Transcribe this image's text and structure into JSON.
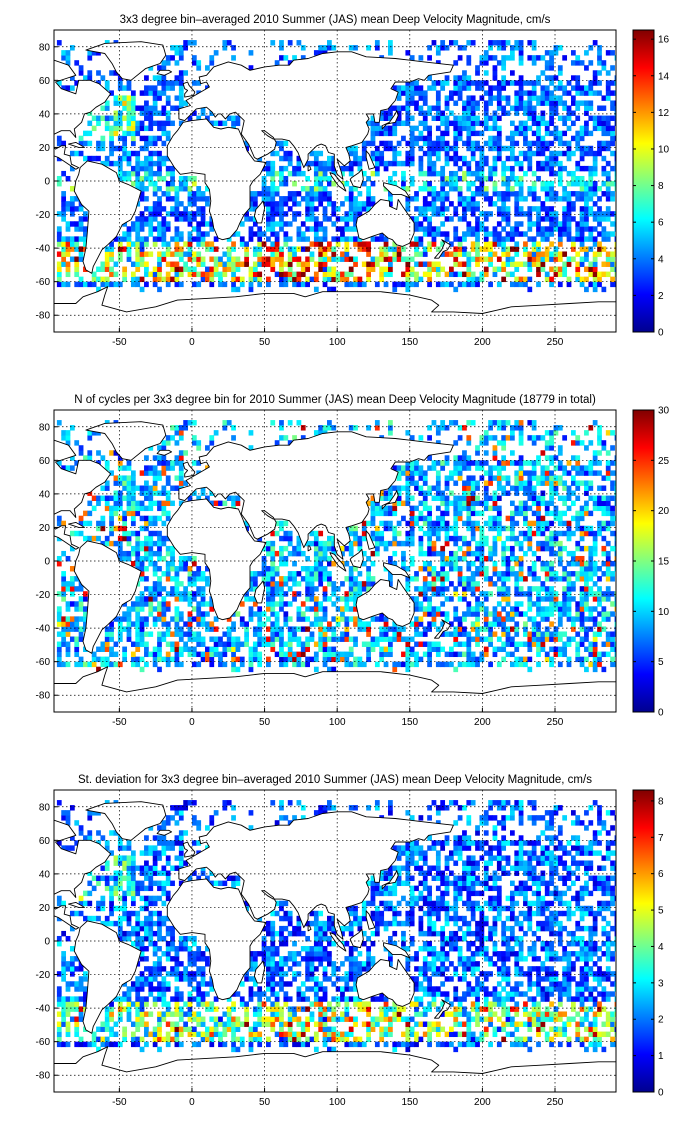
{
  "figure": {
    "panels": [
      {
        "id": "magnitude",
        "title": "3x3 degree bin–averaged 2010 Summer (JAS) mean Deep Velocity Magnitude, cm/s",
        "colorbar": {
          "min": 0,
          "max": 16.5,
          "ticks": [
            0,
            2,
            4,
            6,
            8,
            10,
            12,
            14,
            16
          ]
        },
        "field": "magnitude"
      },
      {
        "id": "cycles",
        "title": "N of cycles per 3x3 degree bin for 2010 Summer (JAS) mean Deep Velocity Magnitude (18779 in total)",
        "colorbar": {
          "min": 0,
          "max": 30,
          "ticks": [
            0,
            5,
            10,
            15,
            20,
            25,
            30
          ]
        },
        "field": "cycles"
      },
      {
        "id": "stddev",
        "title": "St. deviation for 3x3 degree bin–averaged 2010 Summer (JAS) mean Deep Velocity Magnitude, cm/s",
        "colorbar": {
          "min": 0,
          "max": 8.3,
          "ticks": [
            0,
            1,
            2,
            3,
            4,
            5,
            6,
            7,
            8
          ]
        },
        "field": "stddev"
      }
    ]
  },
  "chart_data": [
    {
      "type": "heatmap",
      "title": "3x3 degree bin–averaged 2010 Summer (JAS) mean Deep Velocity Magnitude, cm/s",
      "xlim": [
        -95,
        292
      ],
      "ylim": [
        -90,
        90
      ],
      "xticks": [
        -50,
        0,
        50,
        100,
        150,
        200,
        250
      ],
      "yticks": [
        -80,
        -60,
        -40,
        -20,
        0,
        20,
        40,
        60,
        80
      ],
      "bin_size_deg": 3,
      "colorbar_range": [
        0,
        16.5
      ],
      "colormap": "jet",
      "grid": true,
      "note": "Bins concentrated in the Southern Ocean (-40 to -60) reach 12-16 cm/s; interior basins mostly 1-5 cm/s"
    },
    {
      "type": "heatmap",
      "title": "N of cycles per 3x3 degree bin for 2010 Summer (JAS) mean Deep Velocity Magnitude (18779 in total)",
      "xlim": [
        -95,
        292
      ],
      "ylim": [
        -90,
        90
      ],
      "xticks": [
        -50,
        0,
        50,
        100,
        150,
        200,
        250
      ],
      "yticks": [
        -80,
        -60,
        -40,
        -20,
        0,
        20,
        40,
        60,
        80
      ],
      "bin_size_deg": 3,
      "colorbar_range": [
        0,
        30
      ],
      "colormap": "jet",
      "total_cycles": 18779,
      "grid": true
    },
    {
      "type": "heatmap",
      "title": "St. deviation for 3x3 degree bin–averaged 2010 Summer (JAS) mean Deep Velocity Magnitude, cm/s",
      "xlim": [
        -95,
        292
      ],
      "ylim": [
        -90,
        90
      ],
      "xticks": [
        -50,
        0,
        50,
        100,
        150,
        200,
        250
      ],
      "yticks": [
        -80,
        -60,
        -40,
        -20,
        0,
        20,
        40,
        60,
        80
      ],
      "bin_size_deg": 3,
      "colorbar_range": [
        0,
        8.3
      ],
      "colormap": "jet",
      "grid": true
    }
  ]
}
